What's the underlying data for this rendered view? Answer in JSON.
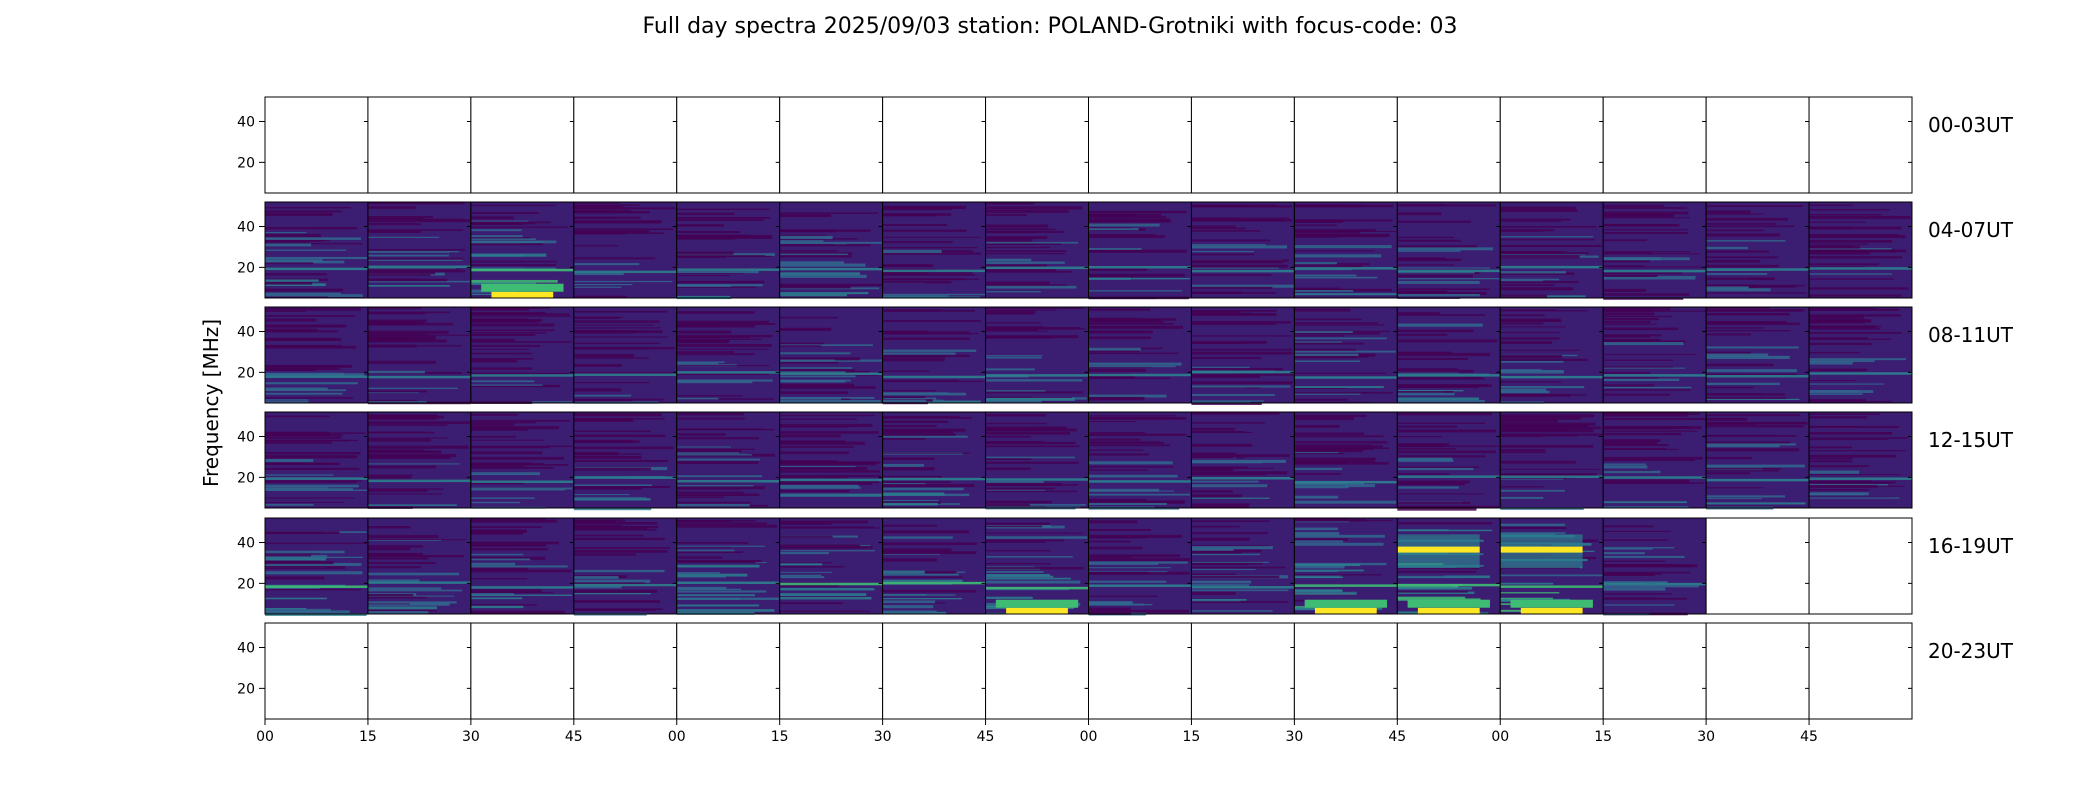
{
  "chart_data": {
    "type": "heatmap",
    "title": "Full day spectra 2025/09/03 station: POLAND-Grotniki with focus-code: 03",
    "ylabel": "Frequency [MHz]",
    "xlabel": "",
    "ylim": [
      5,
      52
    ],
    "y_ticks": [
      "20",
      "40"
    ],
    "y_tick_values": [
      20,
      40
    ],
    "x_tick_labels": [
      "00",
      "15",
      "30",
      "45",
      "00",
      "15",
      "30",
      "45",
      "00",
      "15",
      "30",
      "45",
      "00",
      "15",
      "30",
      "45"
    ],
    "colormap": "viridis",
    "colors": {
      "low": "#440154",
      "base": "#3b1e72",
      "mid": "#2c7f8e",
      "high": "#3fbc73",
      "peak": "#fde725"
    },
    "rows": [
      {
        "label": "00-03UT",
        "panels": [
          0,
          0,
          0,
          0,
          0,
          0,
          0,
          0,
          0,
          0,
          0,
          0,
          0,
          0,
          0,
          0
        ]
      },
      {
        "label": "04-07UT",
        "panels": [
          0.35,
          0.4,
          0.6,
          0.3,
          0.3,
          0.35,
          0.25,
          0.3,
          0.35,
          0.3,
          0.35,
          0.3,
          0.3,
          0.25,
          0.25,
          0.25
        ]
      },
      {
        "label": "08-11UT",
        "panels": [
          0.3,
          0.25,
          0.3,
          0.3,
          0.35,
          0.3,
          0.3,
          0.35,
          0.3,
          0.3,
          0.4,
          0.4,
          0.3,
          0.3,
          0.3,
          0.3
        ]
      },
      {
        "label": "12-15UT",
        "panels": [
          0.3,
          0.3,
          0.4,
          0.35,
          0.3,
          0.3,
          0.35,
          0.3,
          0.3,
          0.3,
          0.3,
          0.3,
          0.35,
          0.3,
          0.35,
          0.35
        ]
      },
      {
        "label": "16-19UT",
        "panels": [
          0.5,
          0.4,
          0.35,
          0.4,
          0.45,
          0.5,
          0.5,
          0.6,
          0.4,
          0.35,
          0.7,
          0.9,
          0.85,
          0.35,
          null,
          null
        ]
      },
      {
        "label": "20-23UT",
        "panels": [
          0,
          0,
          0,
          0,
          0,
          0,
          0,
          0,
          0,
          0,
          0,
          0,
          0,
          0,
          0,
          0
        ]
      }
    ]
  }
}
